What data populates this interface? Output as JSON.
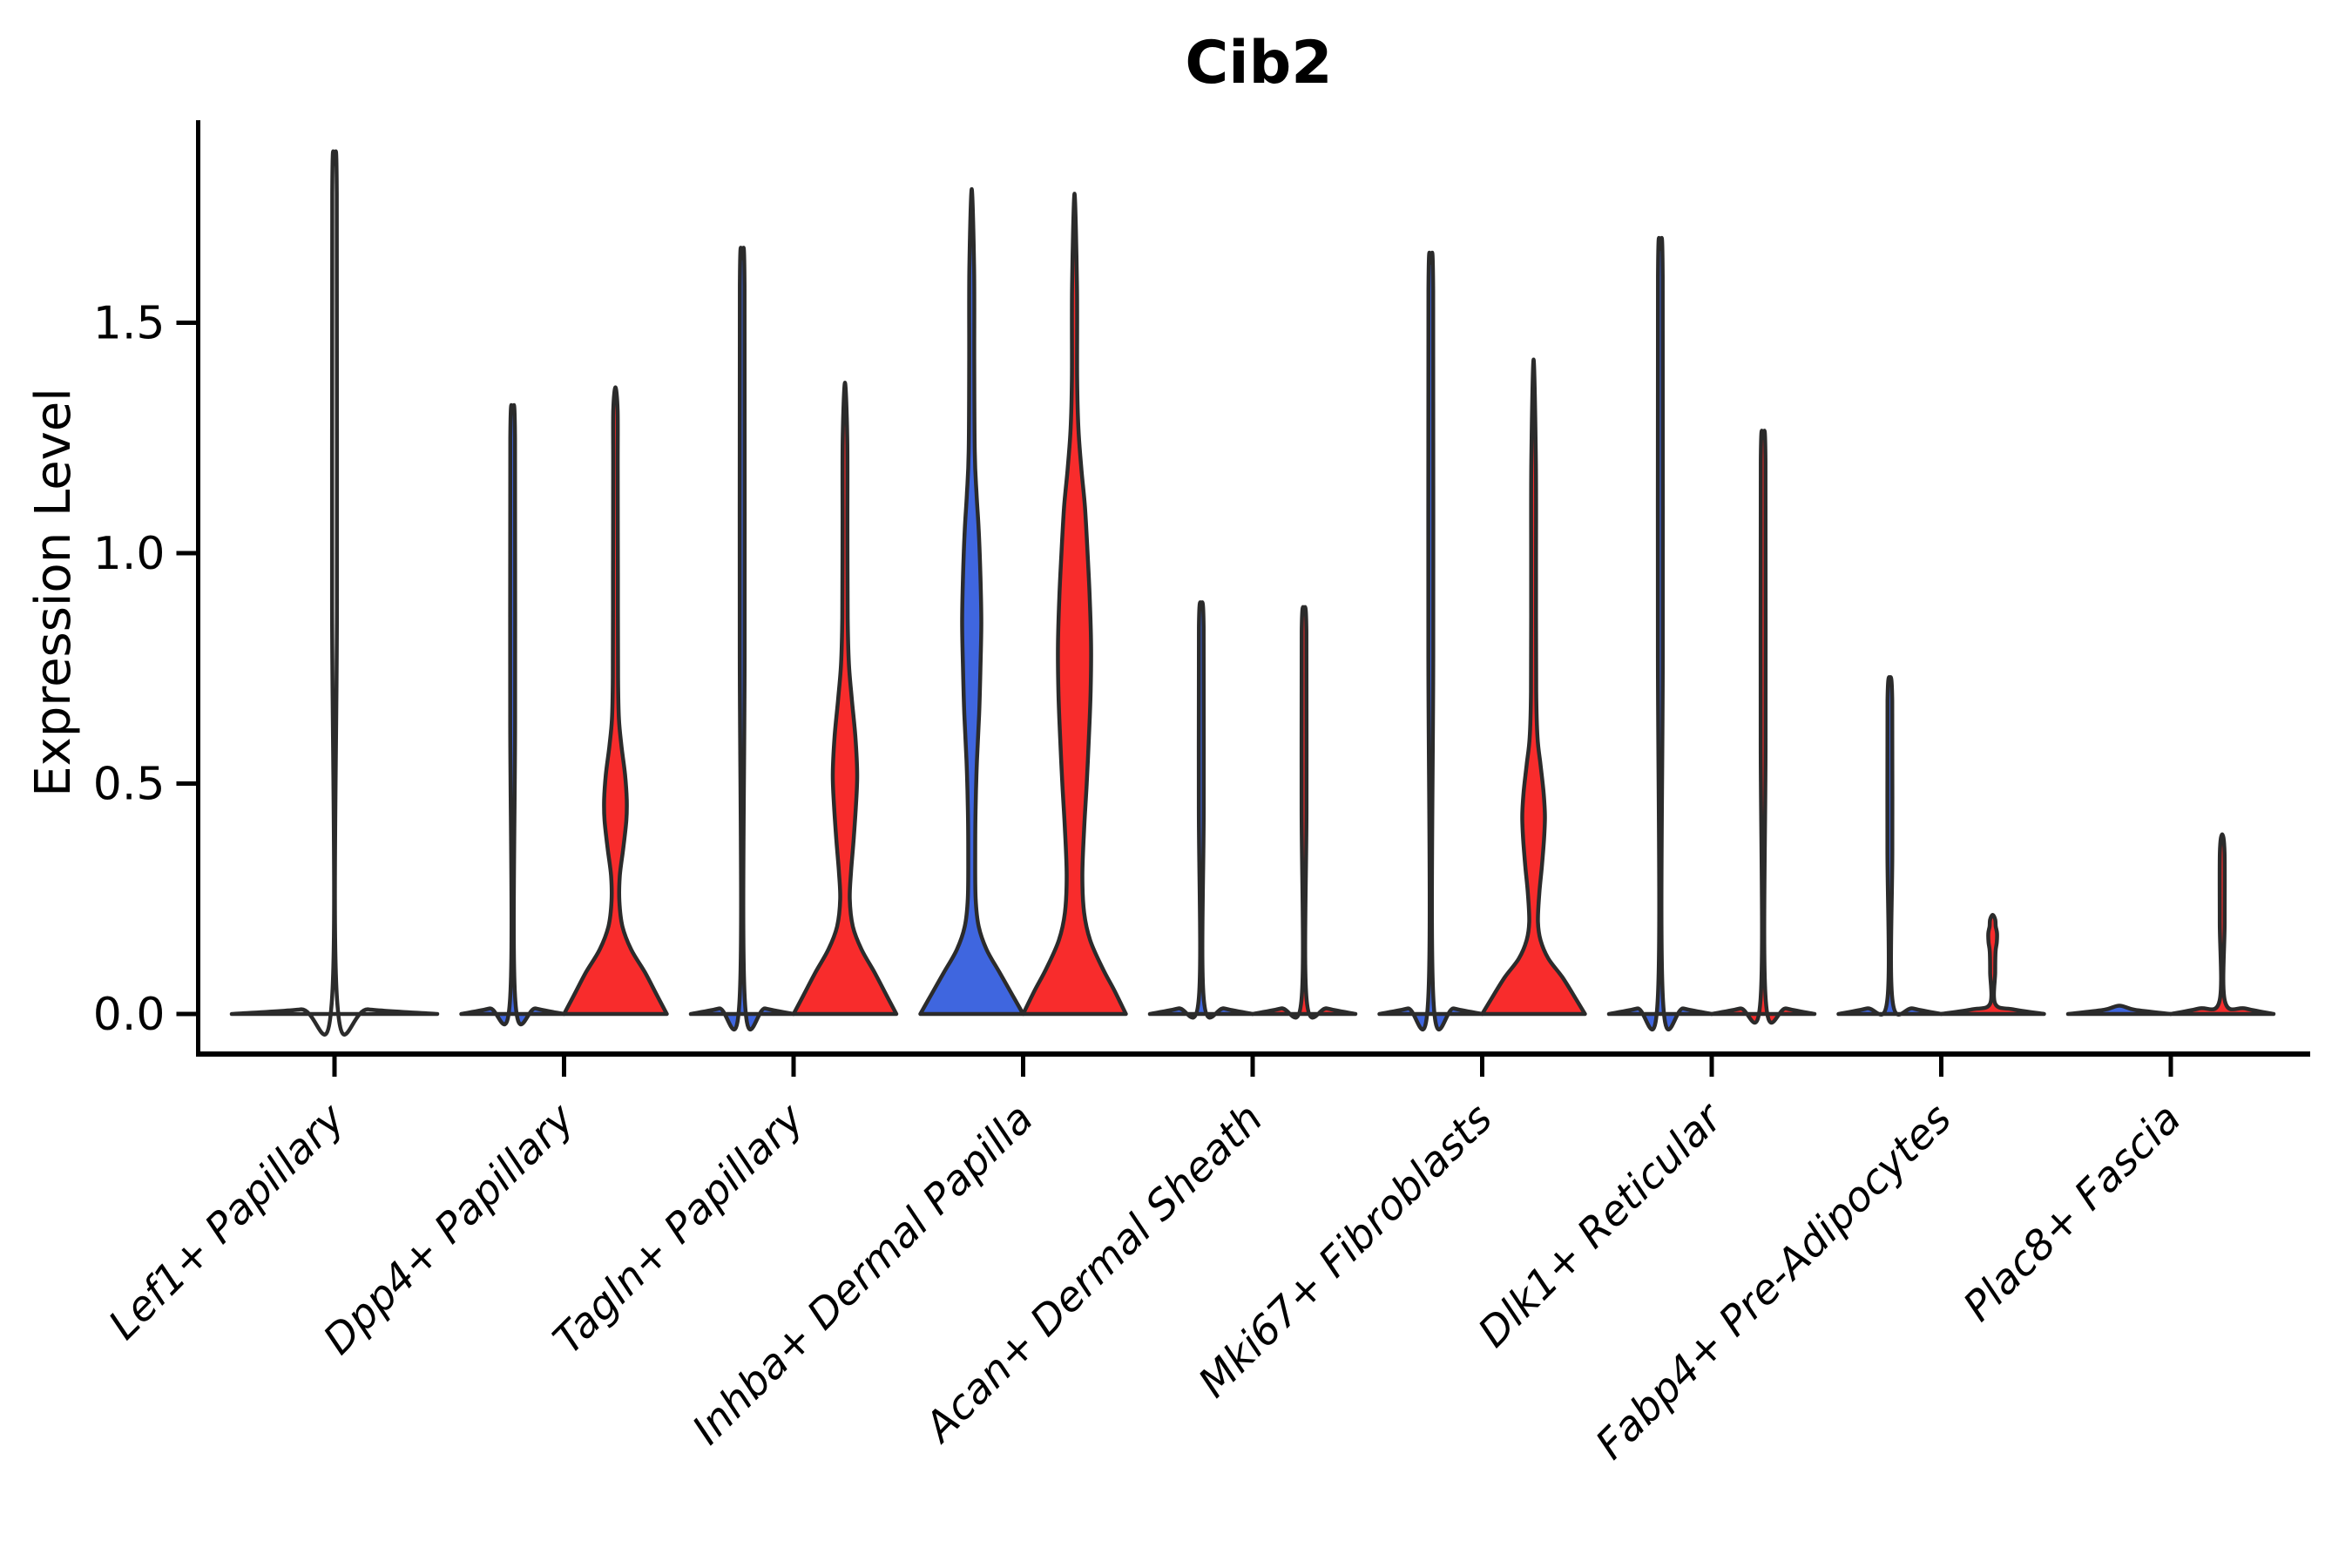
{
  "figure": {
    "title": "Cib2",
    "y_axis_label": "Expression Level"
  },
  "chart_data": {
    "type": "violin",
    "title": "Cib2",
    "xlabel": "",
    "ylabel": "Expression Level",
    "y_ticks": [
      "0.0",
      "0.5",
      "1.0",
      "1.5"
    ],
    "y_tick_values": [
      0.0,
      0.5,
      1.0,
      1.5
    ],
    "ylim": [
      -0.05,
      1.95
    ],
    "grid": false,
    "legend": "none",
    "categories": [
      "Lef1+ Papillary",
      "Dpp4+ Papillary",
      "Tagln+ Papillary",
      "Inhba+ Dermal Papilla",
      "Acan+ Dermal Sheath",
      "Mki67+ Fibroblasts",
      "Dlk1+ Reticular",
      "Fabp4+ Pre-Adipocytes",
      "Plac8+ Fascia"
    ],
    "colors": {
      "left_fill": "#3F66DF",
      "right_fill": "#F82C2C",
      "violin_stroke": "#2B2B2B",
      "axis": "#000000",
      "background": "#ffffff"
    },
    "violins": [
      {
        "category": 0,
        "side": "full",
        "fill": "none",
        "max_expression": 1.845,
        "profile": [
          [
            0,
            1.0
          ],
          [
            0.01,
            0.33
          ],
          [
            0.024,
            0.027
          ],
          [
            0.9,
            0.024
          ],
          [
            1.78,
            0.022
          ],
          [
            1.845,
            0
          ]
        ]
      },
      {
        "category": 1,
        "side": "left",
        "fill": "#3F66DF",
        "max_expression": 1.31,
        "profile": [
          [
            0,
            1.0
          ],
          [
            0.012,
            0.45
          ],
          [
            0.028,
            0.052
          ],
          [
            0.65,
            0.048
          ],
          [
            1.25,
            0.045
          ],
          [
            1.31,
            0
          ]
        ]
      },
      {
        "category": 1,
        "side": "right",
        "fill": "#F82C2C",
        "max_expression": 1.36,
        "profile": [
          [
            0,
            1.0
          ],
          [
            0.04,
            0.81
          ],
          [
            0.09,
            0.576
          ],
          [
            0.14,
            0.305
          ],
          [
            0.19,
            0.136
          ],
          [
            0.245,
            0.076
          ],
          [
            0.3,
            0.085
          ],
          [
            0.36,
            0.153
          ],
          [
            0.42,
            0.212
          ],
          [
            0.465,
            0.22
          ],
          [
            0.52,
            0.186
          ],
          [
            0.58,
            0.119
          ],
          [
            0.64,
            0.068
          ],
          [
            0.73,
            0.051
          ],
          [
            0.95,
            0.047
          ],
          [
            1.18,
            0.044
          ],
          [
            1.31,
            0.042
          ],
          [
            1.36,
            0
          ]
        ]
      },
      {
        "category": 2,
        "side": "left",
        "fill": "#3F66DF",
        "max_expression": 1.64,
        "profile": [
          [
            0,
            1.0
          ],
          [
            0.012,
            0.45
          ],
          [
            0.028,
            0.052
          ],
          [
            0.8,
            0.048
          ],
          [
            1.58,
            0.045
          ],
          [
            1.64,
            0
          ]
        ]
      },
      {
        "category": 2,
        "side": "right",
        "fill": "#F82C2C",
        "max_expression": 1.37,
        "profile": [
          [
            0,
            1.0
          ],
          [
            0.04,
            0.81
          ],
          [
            0.09,
            0.576
          ],
          [
            0.14,
            0.322
          ],
          [
            0.19,
            0.153
          ],
          [
            0.25,
            0.093
          ],
          [
            0.31,
            0.119
          ],
          [
            0.38,
            0.169
          ],
          [
            0.45,
            0.212
          ],
          [
            0.52,
            0.237
          ],
          [
            0.6,
            0.203
          ],
          [
            0.68,
            0.136
          ],
          [
            0.76,
            0.076
          ],
          [
            0.86,
            0.053
          ],
          [
            1.05,
            0.047
          ],
          [
            1.25,
            0.044
          ],
          [
            1.37,
            0
          ]
        ]
      },
      {
        "category": 3,
        "side": "left",
        "fill": "#3F66DF",
        "max_expression": 1.79,
        "profile": [
          [
            0,
            1.0
          ],
          [
            0.04,
            0.797
          ],
          [
            0.09,
            0.542
          ],
          [
            0.14,
            0.288
          ],
          [
            0.19,
            0.136
          ],
          [
            0.25,
            0.076
          ],
          [
            0.35,
            0.068
          ],
          [
            0.45,
            0.076
          ],
          [
            0.55,
            0.102
          ],
          [
            0.65,
            0.144
          ],
          [
            0.75,
            0.169
          ],
          [
            0.85,
            0.186
          ],
          [
            0.95,
            0.169
          ],
          [
            1.05,
            0.136
          ],
          [
            1.13,
            0.093
          ],
          [
            1.22,
            0.059
          ],
          [
            1.42,
            0.049
          ],
          [
            1.62,
            0.046
          ],
          [
            1.79,
            0
          ]
        ]
      },
      {
        "category": 3,
        "side": "right",
        "fill": "#F82C2C",
        "max_expression": 1.78,
        "profile": [
          [
            0,
            1.0
          ],
          [
            0.05,
            0.78
          ],
          [
            0.1,
            0.542
          ],
          [
            0.16,
            0.305
          ],
          [
            0.22,
            0.186
          ],
          [
            0.3,
            0.153
          ],
          [
            0.4,
            0.186
          ],
          [
            0.5,
            0.237
          ],
          [
            0.6,
            0.28
          ],
          [
            0.7,
            0.314
          ],
          [
            0.8,
            0.322
          ],
          [
            0.9,
            0.297
          ],
          [
            1.0,
            0.254
          ],
          [
            1.1,
            0.203
          ],
          [
            1.18,
            0.136
          ],
          [
            1.27,
            0.076
          ],
          [
            1.38,
            0.051
          ],
          [
            1.58,
            0.047
          ],
          [
            1.78,
            0
          ]
        ]
      },
      {
        "category": 4,
        "side": "left",
        "fill": "#3F66DF",
        "max_expression": 0.89,
        "profile": [
          [
            0,
            1.0
          ],
          [
            0.012,
            0.45
          ],
          [
            0.028,
            0.052
          ],
          [
            0.45,
            0.048
          ],
          [
            0.84,
            0.045
          ],
          [
            0.89,
            0
          ]
        ]
      },
      {
        "category": 4,
        "side": "right",
        "fill": "#F82C2C",
        "max_expression": 0.88,
        "profile": [
          [
            0,
            1.0
          ],
          [
            0.012,
            0.45
          ],
          [
            0.028,
            0.052
          ],
          [
            0.45,
            0.048
          ],
          [
            0.83,
            0.045
          ],
          [
            0.88,
            0
          ]
        ]
      },
      {
        "category": 5,
        "side": "left",
        "fill": "#3F66DF",
        "max_expression": 1.63,
        "profile": [
          [
            0,
            1.0
          ],
          [
            0.012,
            0.45
          ],
          [
            0.028,
            0.052
          ],
          [
            0.8,
            0.048
          ],
          [
            1.57,
            0.045
          ],
          [
            1.63,
            0
          ]
        ]
      },
      {
        "category": 5,
        "side": "right",
        "fill": "#F82C2C",
        "max_expression": 1.42,
        "profile": [
          [
            0,
            1.0
          ],
          [
            0.035,
            0.81
          ],
          [
            0.08,
            0.559
          ],
          [
            0.12,
            0.288
          ],
          [
            0.16,
            0.136
          ],
          [
            0.2,
            0.085
          ],
          [
            0.26,
            0.11
          ],
          [
            0.32,
            0.161
          ],
          [
            0.38,
            0.203
          ],
          [
            0.43,
            0.22
          ],
          [
            0.48,
            0.195
          ],
          [
            0.54,
            0.136
          ],
          [
            0.6,
            0.076
          ],
          [
            0.7,
            0.051
          ],
          [
            0.95,
            0.047
          ],
          [
            1.2,
            0.044
          ],
          [
            1.42,
            0
          ]
        ]
      },
      {
        "category": 6,
        "side": "left",
        "fill": "#3F66DF",
        "max_expression": 1.66,
        "profile": [
          [
            0,
            1.0
          ],
          [
            0.012,
            0.45
          ],
          [
            0.028,
            0.052
          ],
          [
            0.8,
            0.048
          ],
          [
            1.6,
            0.045
          ],
          [
            1.66,
            0
          ]
        ]
      },
      {
        "category": 6,
        "side": "right",
        "fill": "#F82C2C",
        "max_expression": 1.25,
        "profile": [
          [
            0,
            1.0
          ],
          [
            0.012,
            0.45
          ],
          [
            0.028,
            0.052
          ],
          [
            0.6,
            0.048
          ],
          [
            1.2,
            0.045
          ],
          [
            1.25,
            0
          ]
        ]
      },
      {
        "category": 7,
        "side": "left",
        "fill": "#3F66DF",
        "max_expression": 0.73,
        "profile": [
          [
            0,
            1.0
          ],
          [
            0.012,
            0.45
          ],
          [
            0.028,
            0.052
          ],
          [
            0.36,
            0.048
          ],
          [
            0.68,
            0.045
          ],
          [
            0.73,
            0
          ]
        ]
      },
      {
        "category": 7,
        "side": "right",
        "fill": "#F82C2C",
        "max_expression": 0.215,
        "profile": [
          [
            0,
            1.0
          ],
          [
            0.01,
            0.4
          ],
          [
            0.022,
            0.051
          ],
          [
            0.09,
            0.049
          ],
          [
            0.135,
            0.056
          ],
          [
            0.155,
            0.08
          ],
          [
            0.175,
            0.085
          ],
          [
            0.19,
            0.06
          ],
          [
            0.205,
            0.05
          ],
          [
            0.215,
            0
          ]
        ]
      },
      {
        "category": 8,
        "side": "left",
        "fill": "#3F66DF",
        "max_expression": 0.0,
        "profile": [
          [
            0,
            1.0
          ],
          [
            0.009,
            0.3
          ],
          [
            0.018,
            0
          ]
        ]
      },
      {
        "category": 8,
        "side": "right",
        "fill": "#F82C2C",
        "max_expression": 0.39,
        "profile": [
          [
            0,
            1.0
          ],
          [
            0.012,
            0.45
          ],
          [
            0.028,
            0.052
          ],
          [
            0.2,
            0.048
          ],
          [
            0.35,
            0.045
          ],
          [
            0.39,
            0
          ]
        ]
      }
    ]
  }
}
